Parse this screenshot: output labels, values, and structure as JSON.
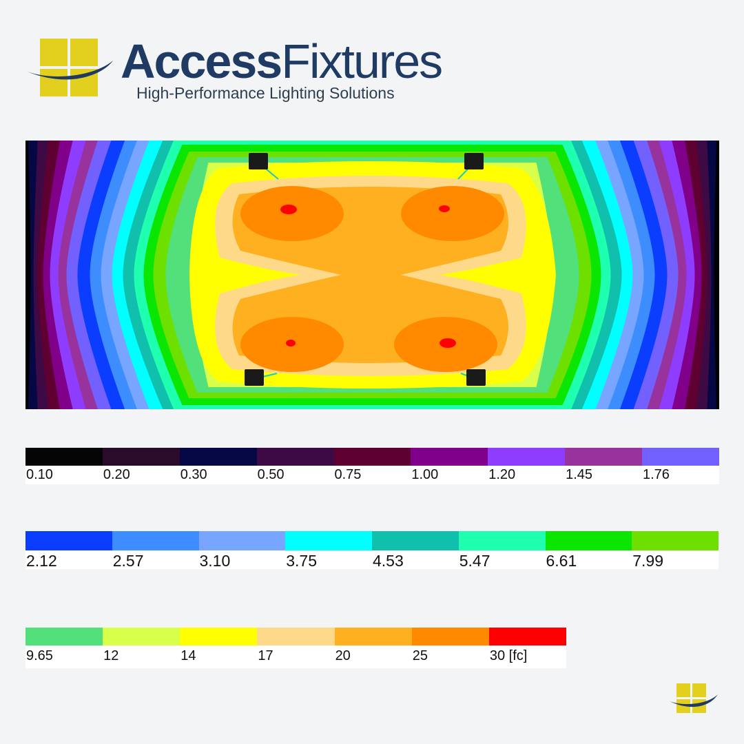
{
  "brand": {
    "name_part1": "Access",
    "name_part2": "Fixtures",
    "tagline": "High-Performance Lighting Solutions",
    "colors": {
      "navy": "#1f3b64",
      "yellow": "#e2cf1e"
    }
  },
  "chart_data": {
    "type": "heatmap",
    "description_type": "isoilluminance contour plot",
    "unit": "fc",
    "legend": [
      {
        "label": "0.10",
        "color": "#050505"
      },
      {
        "label": "0.20",
        "color": "#2a0c2a"
      },
      {
        "label": "0.30",
        "color": "#050845"
      },
      {
        "label": "0.50",
        "color": "#3d0a45"
      },
      {
        "label": "0.75",
        "color": "#5e0032"
      },
      {
        "label": "1.00",
        "color": "#80008a"
      },
      {
        "label": "1.20",
        "color": "#8e3dff"
      },
      {
        "label": "1.45",
        "color": "#98329c"
      },
      {
        "label": "1.76",
        "color": "#7361ff"
      },
      {
        "label": "2.12",
        "color": "#0b3dff"
      },
      {
        "label": "2.57",
        "color": "#3d8dff"
      },
      {
        "label": "3.10",
        "color": "#78a5ff"
      },
      {
        "label": "3.75",
        "color": "#00ffff"
      },
      {
        "label": "4.53",
        "color": "#10c0ad"
      },
      {
        "label": "5.47",
        "color": "#1effb0"
      },
      {
        "label": "6.61",
        "color": "#0ae600"
      },
      {
        "label": "7.99",
        "color": "#6de000"
      },
      {
        "label": "9.65",
        "color": "#52e07a"
      },
      {
        "label": "12",
        "color": "#d8ff4a"
      },
      {
        "label": "14",
        "color": "#ffff00"
      },
      {
        "label": "17",
        "color": "#ffd98a"
      },
      {
        "label": "20",
        "color": "#ffb020"
      },
      {
        "label": "25",
        "color": "#ff8a00"
      },
      {
        "label": "30 [fc]",
        "color": "#ff0000"
      }
    ],
    "fixture_count": 4,
    "peak_zones": 4
  }
}
